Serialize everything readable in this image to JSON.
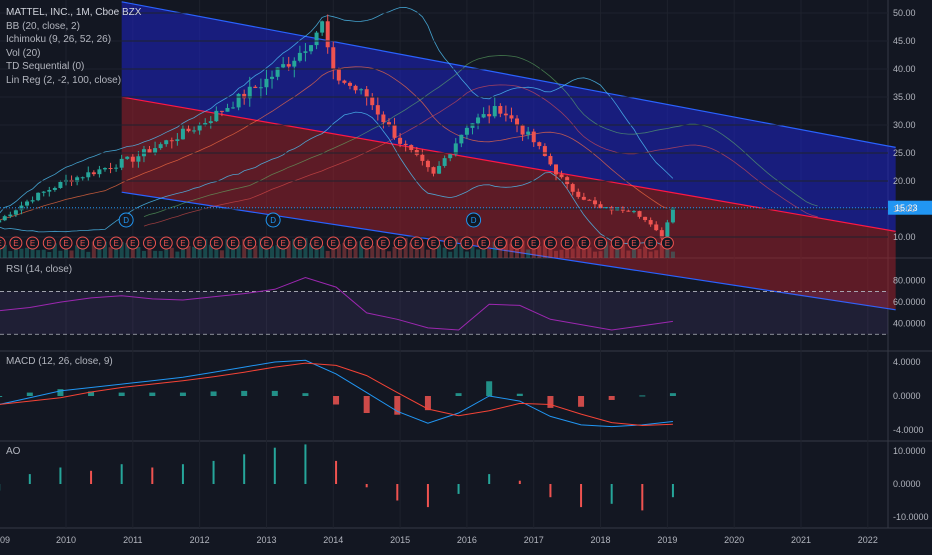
{
  "main": {
    "title": "MATTEL, INC., 1M, Cboe BZX",
    "indicators": [
      "BB (20, close, 2)",
      "Ichimoku (9, 26, 52, 26)",
      "Vol (20)",
      "TD Sequential (0)",
      "Lin Reg (2, -2, 100, close)"
    ],
    "last_price_label": "15.23",
    "price_axis_ticks": [
      "50.00",
      "45.00",
      "40.00",
      "35.00",
      "30.00",
      "25.00",
      "20.00",
      "15.00",
      "10.00"
    ],
    "earnings_marker": "E",
    "dividend_marker": "D"
  },
  "rsi": {
    "title": "RSI (14, close)",
    "axis_ticks": [
      "80.0000",
      "60.0000",
      "40.0000"
    ]
  },
  "macd": {
    "title": "MACD (12, 26, close, 9)",
    "axis_ticks": [
      "4.0000",
      "0.0000",
      "-4.0000"
    ]
  },
  "ao": {
    "title": "AO",
    "axis_ticks": [
      "10.0000",
      "0.0000",
      "-10.0000"
    ]
  },
  "time_axis": [
    "09",
    "2010",
    "2011",
    "2012",
    "2013",
    "2014",
    "2015",
    "2016",
    "2017",
    "2018",
    "2019",
    "2020",
    "2021",
    "2022"
  ],
  "colors": {
    "background": "#131722",
    "up_candle": "#26a69a",
    "down_candle": "#ef5350",
    "linreg_upper": "#1e22c8",
    "linreg_lower": "#a8202a",
    "rsi_line": "#9c27b0",
    "macd_line": "#2196f3",
    "signal_line": "#f44336",
    "last_price_bg": "#2196f3"
  },
  "chart_data": {
    "type": "candlestick",
    "title": "MATTEL, INC., 1M, Cboe BZX",
    "interval": "1M",
    "x_range": [
      "2009-01",
      "2022-06"
    ],
    "price_ylim": [
      7,
      52
    ],
    "last_close": 15.23,
    "price_path": [
      {
        "x": "2009-01",
        "close": 13
      },
      {
        "x": "2009-07",
        "close": 17
      },
      {
        "x": "2010-01",
        "close": 20
      },
      {
        "x": "2010-07",
        "close": 22
      },
      {
        "x": "2011-01",
        "close": 24
      },
      {
        "x": "2011-07",
        "close": 27
      },
      {
        "x": "2012-01",
        "close": 30
      },
      {
        "x": "2012-07",
        "close": 34
      },
      {
        "x": "2013-01",
        "close": 38
      },
      {
        "x": "2013-07",
        "close": 43
      },
      {
        "x": "2013-11",
        "close": 48
      },
      {
        "x": "2014-01",
        "close": 39
      },
      {
        "x": "2014-07",
        "close": 35
      },
      {
        "x": "2015-01",
        "close": 27
      },
      {
        "x": "2015-07",
        "close": 21
      },
      {
        "x": "2016-01",
        "close": 30
      },
      {
        "x": "2016-07",
        "close": 33
      },
      {
        "x": "2017-01",
        "close": 27
      },
      {
        "x": "2017-07",
        "close": 19
      },
      {
        "x": "2018-01",
        "close": 15
      },
      {
        "x": "2018-07",
        "close": 15
      },
      {
        "x": "2018-12",
        "close": 10
      },
      {
        "x": "2019-02",
        "close": 15.23
      }
    ],
    "linreg_channel": {
      "start": {
        "x": "2010-11",
        "upper": 52,
        "mid": 35,
        "lower": 18
      },
      "end": {
        "x": "2022-06",
        "upper": 26,
        "mid": 11,
        "lower": -3
      }
    },
    "rsi": {
      "ylim": [
        20,
        90
      ],
      "levels": [
        70,
        30
      ],
      "values": [
        52,
        55,
        60,
        64,
        66,
        63,
        62,
        65,
        68,
        72,
        83,
        74,
        50,
        44,
        36,
        34,
        58,
        57,
        44,
        39,
        34,
        38,
        42
      ]
    },
    "macd": {
      "ylim": [
        -5,
        5
      ],
      "macd": [
        -1,
        -0.2,
        0.6,
        1,
        1.4,
        1.8,
        2.2,
        2.8,
        3.4,
        4,
        4.2,
        2.6,
        0.4,
        -1.8,
        -3.2,
        -2,
        0,
        -0.6,
        -2.4,
        -3.4,
        -3.6,
        -3.4,
        -3
      ]
    },
    "ao": {
      "ylim": [
        -12,
        12
      ],
      "values": [
        -2,
        3,
        5,
        4,
        6,
        5,
        6,
        7,
        9,
        11,
        12,
        7,
        -1,
        -5,
        -7,
        -3,
        3,
        1,
        -4,
        -7,
        -6,
        -8,
        -4
      ]
    }
  }
}
